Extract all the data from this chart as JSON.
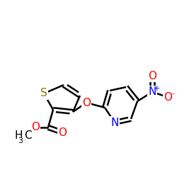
{
  "background_color": "#ffffff",
  "atom_colors": {
    "C": "#000000",
    "H": "#000000",
    "O": "#ff0000",
    "N": "#0000ff",
    "S": "#808000",
    "charge_plus": "#0000ff",
    "charge_minus": "#ff0000"
  },
  "bond_color": "#000000",
  "bond_width": 1.8,
  "font_size_atom": 11,
  "font_size_sub": 8,
  "figsize": [
    2.5,
    2.5
  ],
  "dpi": 100
}
